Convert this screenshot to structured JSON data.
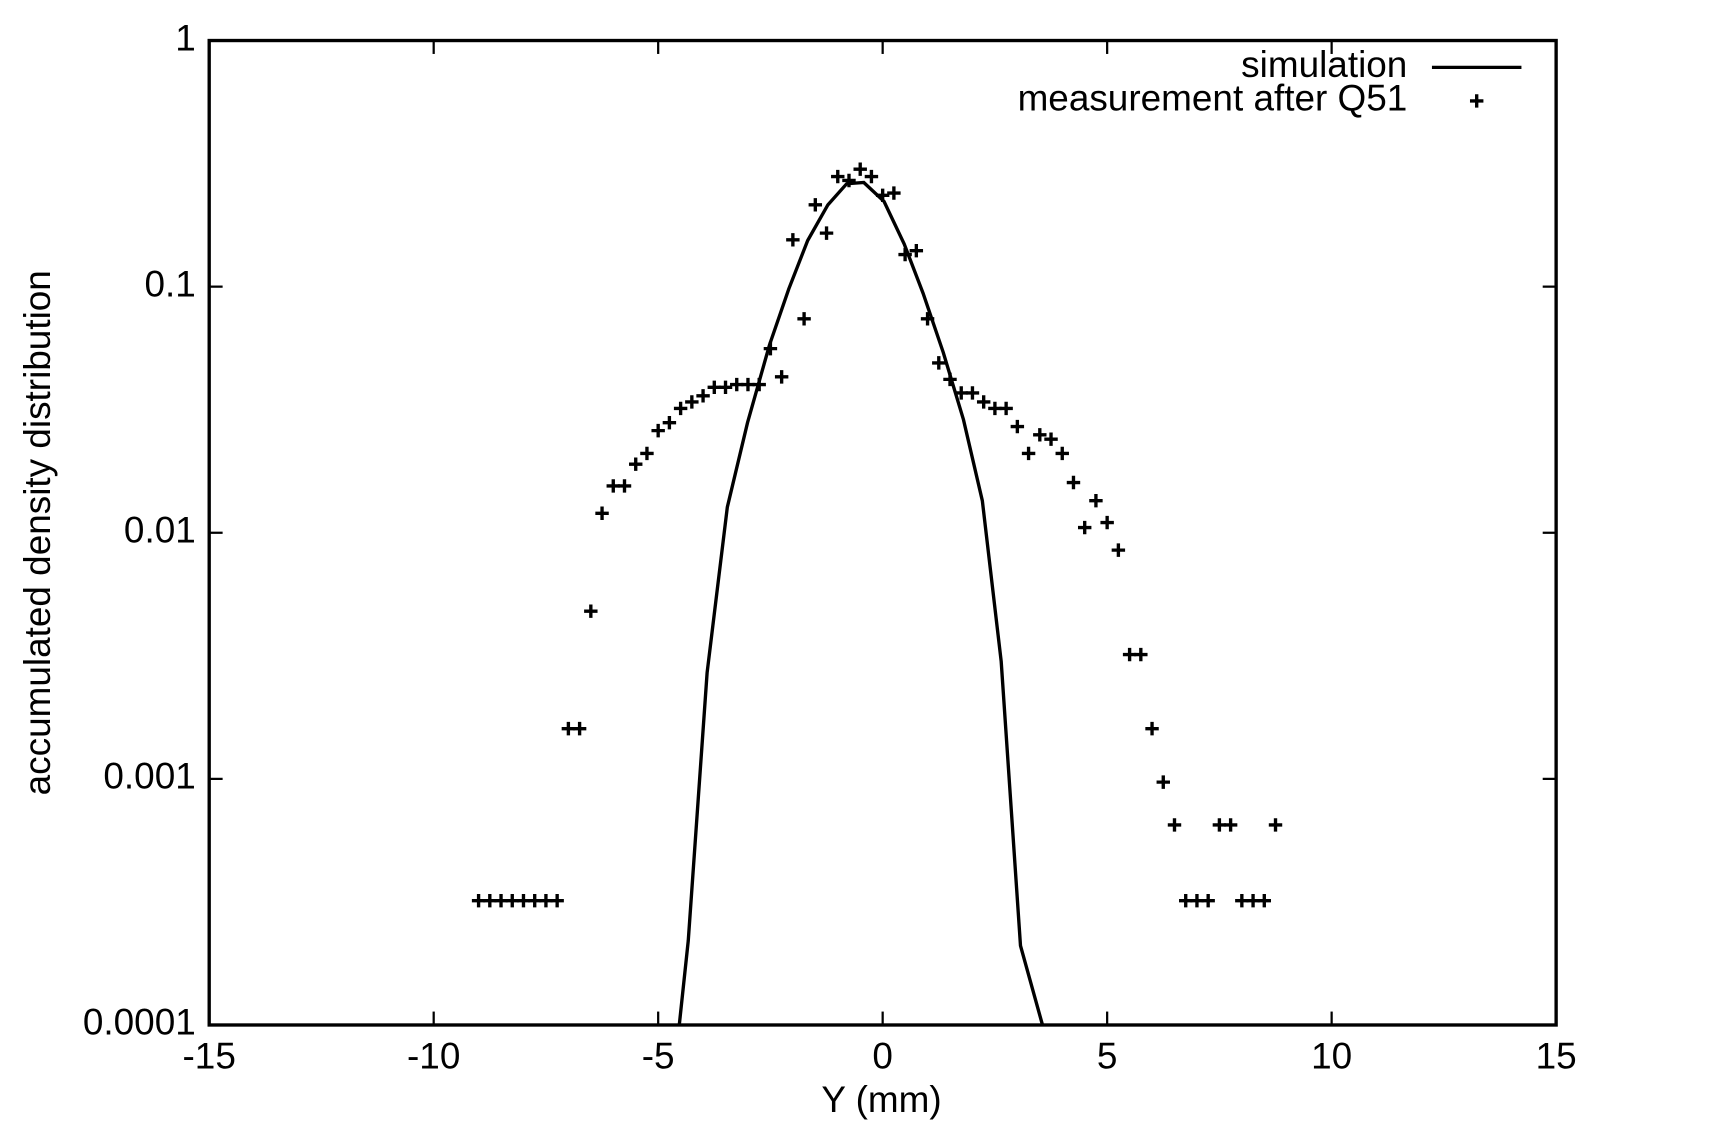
{
  "chart_data": {
    "type": "line",
    "xlabel": "Y (mm)",
    "ylabel": "accumulated density distribution",
    "xlim": [
      -15,
      15
    ],
    "xticks": [
      -15,
      -10,
      -5,
      0,
      5,
      10,
      15
    ],
    "ylim": [
      0.0001,
      1
    ],
    "yticks": [
      0.0001,
      0.001,
      0.01,
      0.1,
      1
    ],
    "log_y": true,
    "grid": false,
    "legend": "top-right",
    "series": [
      {
        "name": "simulation",
        "color": "#000000",
        "style": "line",
        "x": [
          -4.53,
          -4.33,
          -3.91,
          -3.46,
          -3.01,
          -2.52,
          -2.09,
          -1.67,
          -1.22,
          -0.8,
          -0.42,
          0.03,
          0.48,
          0.9,
          1.35,
          1.8,
          2.22,
          2.64,
          3.07,
          3.56
        ],
        "values": [
          0.0001,
          0.00022,
          0.0027,
          0.0127,
          0.028,
          0.058,
          0.098,
          0.154,
          0.215,
          0.262,
          0.265,
          0.222,
          0.149,
          0.094,
          0.054,
          0.0288,
          0.0135,
          0.003,
          0.00021,
          0.0001
        ]
      },
      {
        "name": "measurement after Q51",
        "color": "#000000",
        "style": "points",
        "marker": "+",
        "x": [
          -9.0,
          -8.75,
          -8.5,
          -8.25,
          -8.0,
          -7.75,
          -7.5,
          -7.25,
          -7.0,
          -6.75,
          -6.5,
          -6.25,
          -6.0,
          -5.75,
          -5.5,
          -5.25,
          -5.0,
          -4.75,
          -4.5,
          -4.25,
          -4.0,
          -3.75,
          -3.5,
          -3.25,
          -3.0,
          -2.75,
          -2.5,
          -2.25,
          -2.0,
          -1.75,
          -1.5,
          -1.25,
          -1.0,
          -0.75,
          -0.5,
          -0.25,
          0.0,
          0.25,
          0.5,
          0.75,
          1.0,
          1.25,
          1.5,
          1.75,
          2.0,
          2.25,
          2.5,
          2.75,
          3.0,
          3.25,
          3.5,
          3.75,
          4.0,
          4.25,
          4.5,
          4.75,
          5.0,
          5.25,
          5.5,
          5.75,
          6.0,
          6.25,
          6.5,
          6.75,
          7.0,
          7.25,
          7.5,
          7.75,
          8.0,
          8.25,
          8.5,
          8.75
        ],
        "values": [
          0.00032,
          0.00032,
          0.00032,
          0.00032,
          0.00032,
          0.00032,
          0.00032,
          0.00032,
          0.0016,
          0.0016,
          0.0048,
          0.012,
          0.0155,
          0.0155,
          0.019,
          0.021,
          0.026,
          0.028,
          0.032,
          0.034,
          0.036,
          0.039,
          0.039,
          0.04,
          0.04,
          0.04,
          0.056,
          0.043,
          0.155,
          0.074,
          0.215,
          0.165,
          0.28,
          0.27,
          0.3,
          0.28,
          0.235,
          0.24,
          0.135,
          0.14,
          0.074,
          0.049,
          0.042,
          0.037,
          0.037,
          0.034,
          0.032,
          0.032,
          0.027,
          0.021,
          0.025,
          0.024,
          0.021,
          0.016,
          0.0105,
          0.0135,
          0.011,
          0.0085,
          0.0032,
          0.0032,
          0.0016,
          0.00097,
          0.00065,
          0.00032,
          0.00032,
          0.00032,
          0.00065,
          0.00065,
          0.00032,
          0.00032,
          0.00032,
          0.00065
        ]
      }
    ]
  }
}
